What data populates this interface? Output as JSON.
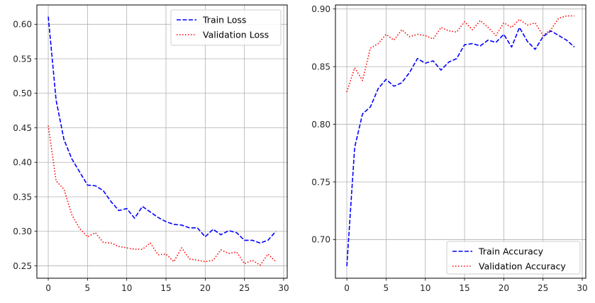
{
  "chart_data": [
    {
      "type": "line",
      "title": "",
      "xlabel": "",
      "ylabel": "",
      "xlim": [
        -1.45,
        30.45
      ],
      "ylim": [
        0.232,
        0.628
      ],
      "grid": true,
      "legend_position": "top-right",
      "xticks": [
        0,
        5,
        10,
        15,
        20,
        25,
        30
      ],
      "xtick_labels": [
        "0",
        "5",
        "10",
        "15",
        "20",
        "25",
        "30"
      ],
      "yticks": [
        0.25,
        0.3,
        0.35,
        0.4,
        0.45,
        0.5,
        0.55,
        0.6
      ],
      "ytick_labels": [
        "0.25",
        "0.30",
        "0.35",
        "0.40",
        "0.45",
        "0.50",
        "0.55",
        "0.60"
      ],
      "x": [
        0,
        1,
        2,
        3,
        4,
        5,
        6,
        7,
        8,
        9,
        10,
        11,
        12,
        13,
        14,
        15,
        16,
        17,
        18,
        19,
        20,
        21,
        22,
        23,
        24,
        25,
        26,
        27,
        28,
        29
      ],
      "series": [
        {
          "name": "Train Loss",
          "color": "#0000ff",
          "style": "dashed",
          "values": [
            0.611,
            0.49,
            0.433,
            0.405,
            0.386,
            0.367,
            0.366,
            0.359,
            0.343,
            0.33,
            0.333,
            0.319,
            0.336,
            0.328,
            0.32,
            0.314,
            0.31,
            0.309,
            0.305,
            0.305,
            0.292,
            0.303,
            0.295,
            0.301,
            0.298,
            0.287,
            0.287,
            0.283,
            0.287,
            0.3
          ]
        },
        {
          "name": "Validation Loss",
          "color": "#ff0000",
          "style": "dotted",
          "values": [
            0.453,
            0.373,
            0.361,
            0.324,
            0.304,
            0.292,
            0.298,
            0.284,
            0.283,
            0.278,
            0.276,
            0.274,
            0.274,
            0.283,
            0.266,
            0.267,
            0.256,
            0.276,
            0.26,
            0.258,
            0.256,
            0.258,
            0.273,
            0.268,
            0.27,
            0.253,
            0.258,
            0.251,
            0.267,
            0.256
          ]
        }
      ]
    },
    {
      "type": "line",
      "title": "",
      "xlabel": "",
      "ylabel": "",
      "xlim": [
        -1.45,
        30.45
      ],
      "ylim": [
        0.6665,
        0.9035
      ],
      "grid": true,
      "legend_position": "bottom-right",
      "xticks": [
        0,
        5,
        10,
        15,
        20,
        25,
        30
      ],
      "xtick_labels": [
        "0",
        "5",
        "10",
        "15",
        "20",
        "25",
        "30"
      ],
      "yticks": [
        0.7,
        0.75,
        0.8,
        0.85,
        0.9
      ],
      "ytick_labels": [
        "0.70",
        "0.75",
        "0.80",
        "0.85",
        "0.90"
      ],
      "x": [
        0,
        1,
        2,
        3,
        4,
        5,
        6,
        7,
        8,
        9,
        10,
        11,
        12,
        13,
        14,
        15,
        16,
        17,
        18,
        19,
        20,
        21,
        22,
        23,
        24,
        25,
        26,
        27,
        28,
        29
      ],
      "series": [
        {
          "name": "Train Accuracy",
          "color": "#0000ff",
          "style": "dashed",
          "values": [
            0.677,
            0.78,
            0.809,
            0.815,
            0.831,
            0.839,
            0.833,
            0.836,
            0.845,
            0.857,
            0.853,
            0.855,
            0.847,
            0.854,
            0.857,
            0.869,
            0.87,
            0.868,
            0.873,
            0.871,
            0.878,
            0.867,
            0.884,
            0.872,
            0.865,
            0.876,
            0.881,
            0.877,
            0.873,
            0.867
          ]
        },
        {
          "name": "Validation Accuracy",
          "color": "#ff0000",
          "style": "dotted",
          "values": [
            0.828,
            0.849,
            0.838,
            0.866,
            0.87,
            0.878,
            0.873,
            0.882,
            0.876,
            0.878,
            0.877,
            0.874,
            0.884,
            0.881,
            0.88,
            0.889,
            0.882,
            0.89,
            0.884,
            0.877,
            0.888,
            0.884,
            0.891,
            0.886,
            0.888,
            0.877,
            0.882,
            0.892,
            0.894,
            0.894
          ]
        }
      ]
    }
  ]
}
